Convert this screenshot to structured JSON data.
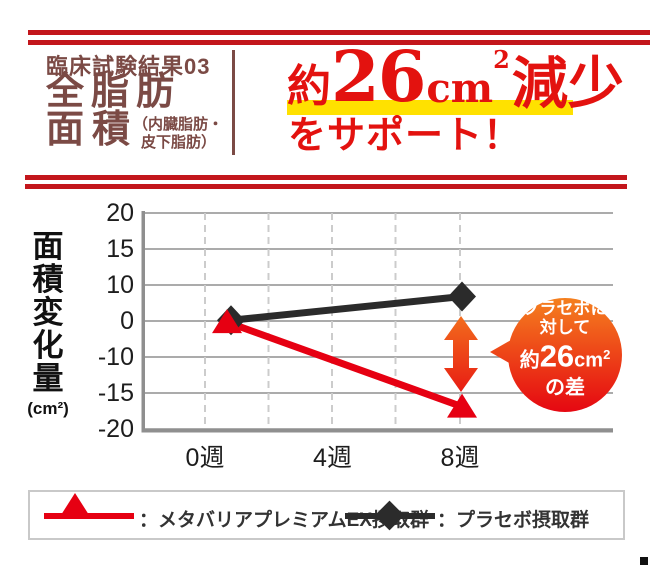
{
  "header": {
    "badge": "臨床試験結果03",
    "title_row1": [
      "全",
      "脂",
      "肪"
    ],
    "title_row2": [
      "面",
      "積"
    ],
    "title_paren_line1": "（内臓脂肪・",
    "title_paren_line2": "皮下脂肪）",
    "claim": {
      "prefix": "約",
      "number": "26",
      "unit": "cm",
      "unit_sup": "2",
      "suffix": "減少",
      "line2": "をサポート！"
    }
  },
  "chart_data": {
    "type": "line",
    "title": "",
    "y_axis_label": "面積変化量",
    "y_axis_unit": "(cm²)",
    "y_tick_labels": [
      "20",
      "15",
      "10",
      "0",
      "-10",
      "-15",
      "-20"
    ],
    "y_tick_values": [
      20,
      15,
      10,
      0,
      -10,
      -15,
      -20
    ],
    "x_ticks": [
      {
        "label": "0週",
        "week": 0
      },
      {
        "label": "4週",
        "week": 4
      },
      {
        "label": "8週",
        "week": 8
      }
    ],
    "x_range_weeks": [
      0,
      8
    ],
    "grid": true,
    "series": [
      {
        "name": "メタバリアプレミアムEX摂取群",
        "color": "#e60012",
        "marker": "triangle",
        "points": [
          {
            "week": 0,
            "value": -0.3
          },
          {
            "week": 8,
            "value": -16.9
          }
        ]
      },
      {
        "name": "プラセボ摂取群",
        "color": "#2b2b2b",
        "marker": "diamond",
        "points": [
          {
            "week": 0,
            "value": 0.2
          },
          {
            "week": 8,
            "value": 6.8
          }
        ]
      }
    ],
    "annotation": {
      "line1": "プラセボに",
      "line2": "対して",
      "line3_prefix": "約",
      "line3_num": "26",
      "line3_unit": "cm",
      "line3_sup": "2",
      "line4": "の差",
      "meaning": "プラセボに対して約26cm²の差"
    }
  },
  "legend": [
    {
      "label": "：メタバリアプレミアムEX摂取群",
      "color": "#e60012",
      "marker": "triangle"
    },
    {
      "label": "：プラセボ摂取群",
      "color": "#2b2b2b",
      "marker": "diamond"
    }
  ],
  "colors": {
    "rule_red": "#c3161c",
    "maroon": "#7b4a45",
    "accent_red": "#e60012",
    "claim_red": "#e3120f",
    "highlight_yellow": "#ffe100",
    "series_black": "#2b2b2b",
    "gradient_top": "#f5821f",
    "gradient_bottom": "#e50511",
    "grid_gray": "#8f8f8f",
    "dash_gray": "#cccccc"
  }
}
